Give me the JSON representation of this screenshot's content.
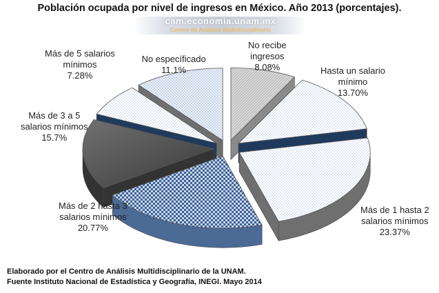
{
  "title": "Población ocupada por nivel de ingresos en México. Año 2013 (porcentajes).",
  "watermark": {
    "url": "cam.economia.unam.mx",
    "subtitle": "Centro de Análisis Multidisciplinario"
  },
  "chart_data": {
    "type": "pie",
    "style": "3d-exploded",
    "legend": "none",
    "series": [
      {
        "values": [
          8.08,
          13.7,
          23.37,
          20.77,
          15.7,
          7.28,
          11.1
        ],
        "labels": [
          {
            "lines": [
              "No recibe",
              "ingresos"
            ],
            "value": "8.08%"
          },
          {
            "lines": [
              "Hasta un salario",
              "mínimo"
            ],
            "value": "13.70%"
          },
          {
            "lines": [
              "Más de 1 hasta 2",
              "salarios mínimos"
            ],
            "value": "23.37%"
          },
          {
            "lines": [
              "Más de 2 hasta 3",
              "salarios mínimos"
            ],
            "value": "20.77%"
          },
          {
            "lines": [
              "Más de 3 a 5",
              "salarios mínimos"
            ],
            "value": "15.7%"
          },
          {
            "lines": [
              "Más de 5 salarios",
              "mínimos"
            ],
            "value": "7.28%"
          },
          {
            "lines": [
              "No específicado"
            ],
            "value": "11.1%"
          }
        ],
        "colors": [
          "#cfcfcf",
          "#dfe8f5",
          "#f4f6fb",
          "#7f9cc8",
          "#5c5c5c",
          "#dbe5f3",
          "#eef2f8"
        ],
        "side_colors": [
          "#8a8a8a",
          "#1f3a5c",
          "#6f6f6f",
          "#4b6a96",
          "#333333",
          "#1f3a5c",
          "#6f6f6f"
        ]
      }
    ]
  },
  "footer": {
    "line1": "Elaborado por el Centro de Análisis Multidisciplinario de la UNAM.",
    "line2": "Fuente Instituto Nacional de Estadística y Geografía, INEGI.  Mayo 2014"
  }
}
